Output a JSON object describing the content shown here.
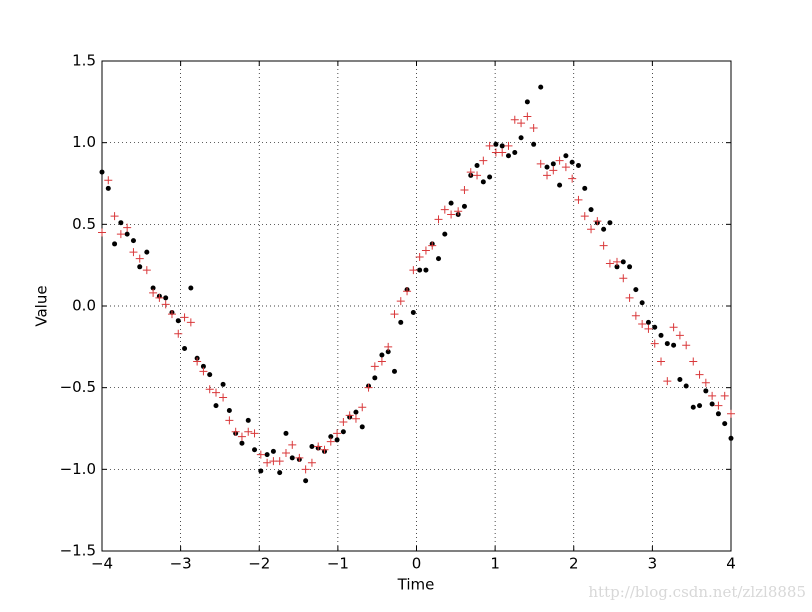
{
  "chart_data": {
    "type": "scatter",
    "x_label": "Time",
    "y_label": "Value",
    "watermark": "http://blog.csdn.net/zlzl8885",
    "xlim": [
      -4,
      4
    ],
    "ylim": [
      -1.5,
      1.5
    ],
    "xticks": [
      {
        "value": -4,
        "label": "−4"
      },
      {
        "value": -3,
        "label": "−3"
      },
      {
        "value": -2,
        "label": "−2"
      },
      {
        "value": -1,
        "label": "−1"
      },
      0,
      1,
      2,
      3,
      4
    ],
    "yticks": [
      {
        "value": -1.5,
        "label": "−1.5"
      },
      {
        "value": -1.0,
        "label": "−1.0"
      },
      {
        "value": -0.5,
        "label": "−0.5"
      },
      {
        "value": 0,
        "label": "0.0"
      },
      {
        "value": 0.5,
        "label": "0.5"
      },
      {
        "value": 1.0,
        "label": "1.0"
      },
      {
        "value": 1.5,
        "label": "1.5"
      }
    ],
    "grid": true,
    "x": [
      -4.0,
      -3.92,
      -3.84,
      -3.76,
      -3.68,
      -3.6,
      -3.52,
      -3.43,
      -3.35,
      -3.27,
      -3.19,
      -3.11,
      -3.03,
      -2.95,
      -2.87,
      -2.79,
      -2.71,
      -2.63,
      -2.55,
      -2.46,
      -2.38,
      -2.3,
      -2.22,
      -2.14,
      -2.06,
      -1.98,
      -1.9,
      -1.82,
      -1.74,
      -1.66,
      -1.58,
      -1.49,
      -1.41,
      -1.33,
      -1.25,
      -1.17,
      -1.09,
      -1.01,
      -0.93,
      -0.85,
      -0.77,
      -0.69,
      -0.61,
      -0.53,
      -0.44,
      -0.36,
      -0.28,
      -0.2,
      -0.12,
      -0.04,
      0.04,
      0.12,
      0.2,
      0.28,
      0.36,
      0.44,
      0.53,
      0.61,
      0.69,
      0.77,
      0.85,
      0.93,
      1.01,
      1.09,
      1.17,
      1.25,
      1.33,
      1.41,
      1.49,
      1.58,
      1.66,
      1.74,
      1.82,
      1.9,
      1.98,
      2.06,
      2.14,
      2.22,
      2.3,
      2.38,
      2.46,
      2.55,
      2.63,
      2.71,
      2.79,
      2.87,
      2.95,
      3.03,
      3.11,
      3.19,
      3.27,
      3.35,
      3.43,
      3.52,
      3.6,
      3.68,
      3.76,
      3.84,
      3.92,
      4.0
    ],
    "series": [
      {
        "color": "#000000",
        "marker": "dot",
        "values": [
          0.82,
          0.72,
          0.38,
          0.51,
          0.44,
          0.4,
          0.24,
          0.33,
          0.11,
          0.06,
          0.05,
          -0.04,
          -0.09,
          -0.26,
          0.11,
          -0.32,
          -0.37,
          -0.42,
          -0.61,
          -0.48,
          -0.64,
          -0.78,
          -0.84,
          -0.7,
          -0.88,
          -1.01,
          -0.91,
          -0.89,
          -1.02,
          -0.78,
          -0.93,
          -0.94,
          -1.07,
          -0.86,
          -0.87,
          -0.89,
          -0.8,
          -0.82,
          -0.77,
          -0.68,
          -0.65,
          -0.74,
          -0.49,
          -0.44,
          -0.3,
          -0.28,
          -0.4,
          -0.1,
          0.1,
          -0.04,
          0.22,
          0.22,
          0.38,
          0.29,
          0.44,
          0.63,
          0.56,
          0.61,
          0.8,
          0.86,
          0.76,
          0.79,
          0.99,
          0.98,
          0.92,
          0.94,
          1.03,
          1.25,
          0.99,
          1.34,
          0.85,
          0.87,
          0.74,
          0.92,
          0.88,
          0.86,
          0.72,
          0.59,
          0.51,
          0.47,
          0.51,
          0.24,
          0.27,
          0.24,
          0.1,
          0.02,
          -0.1,
          -0.13,
          -0.18,
          -0.23,
          -0.24,
          -0.45,
          -0.49,
          -0.62,
          -0.61,
          -0.52,
          -0.6,
          -0.66,
          -0.72,
          -0.81
        ]
      },
      {
        "color": "#d9383a",
        "marker": "plus",
        "values": [
          0.45,
          0.77,
          0.55,
          0.44,
          0.48,
          0.33,
          0.29,
          0.22,
          0.08,
          0.05,
          0.01,
          -0.05,
          -0.17,
          -0.07,
          -0.1,
          -0.34,
          -0.4,
          -0.51,
          -0.53,
          -0.56,
          -0.7,
          -0.77,
          -0.8,
          -0.77,
          -0.78,
          -0.91,
          -0.96,
          -0.95,
          -0.95,
          -0.9,
          -0.85,
          -0.93,
          -1.0,
          -0.96,
          -0.86,
          -0.88,
          -0.83,
          -0.78,
          -0.71,
          -0.67,
          -0.69,
          -0.62,
          -0.5,
          -0.37,
          -0.34,
          -0.25,
          -0.05,
          0.03,
          0.09,
          0.22,
          0.3,
          0.34,
          0.37,
          0.53,
          0.59,
          0.56,
          0.58,
          0.71,
          0.82,
          0.8,
          0.89,
          0.98,
          0.94,
          0.94,
          0.98,
          1.14,
          1.12,
          1.16,
          1.09,
          0.87,
          0.8,
          0.83,
          0.89,
          0.85,
          0.78,
          0.65,
          0.55,
          0.47,
          0.52,
          0.37,
          0.26,
          0.27,
          0.17,
          0.05,
          -0.06,
          -0.11,
          -0.14,
          -0.23,
          -0.34,
          -0.46,
          -0.13,
          -0.18,
          -0.24,
          -0.34,
          -0.42,
          -0.47,
          -0.55,
          -0.61,
          -0.55,
          -0.66
        ]
      }
    ]
  }
}
